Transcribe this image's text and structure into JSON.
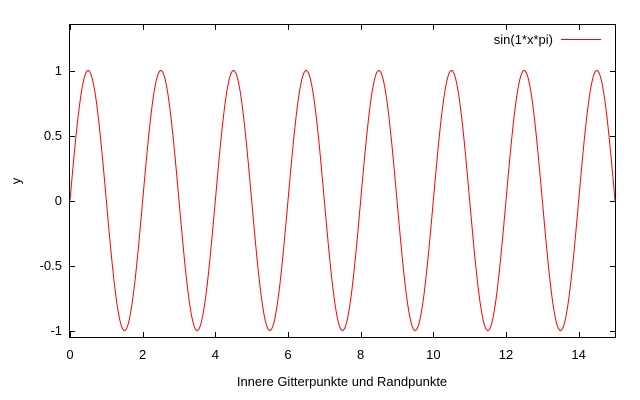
{
  "chart_data": {
    "type": "line",
    "title": "",
    "xlabel": "Innere Gitterpunkte und Randpunkte",
    "ylabel": "y",
    "xlim": [
      0,
      15
    ],
    "ylim": [
      -1.05,
      1.35
    ],
    "xticks": [
      0,
      2,
      4,
      6,
      8,
      10,
      12,
      14
    ],
    "xtick_labels": [
      "0",
      "2",
      "4",
      "6",
      "8",
      "10",
      "12",
      "14"
    ],
    "yticks": [
      -1,
      -0.5,
      0,
      0.5,
      1
    ],
    "ytick_labels": [
      "-1",
      "-0.5",
      "0",
      "0.5",
      "1"
    ],
    "grid": false,
    "legend_position": "top-right",
    "series": [
      {
        "name": "sin(1*x*pi)",
        "function": "sin(1*x*pi)",
        "color": "#ff0000",
        "x": [
          0,
          0.25,
          0.5,
          0.75,
          1,
          1.25,
          1.5,
          1.75,
          2,
          2.25,
          2.5,
          2.75,
          3,
          3.25,
          3.5,
          3.75,
          4,
          4.25,
          4.5,
          4.75,
          5,
          5.25,
          5.5,
          5.75,
          6,
          6.25,
          6.5,
          6.75,
          7,
          7.25,
          7.5,
          7.75,
          8,
          8.25,
          8.5,
          8.75,
          9,
          9.25,
          9.5,
          9.75,
          10,
          10.25,
          10.5,
          10.75,
          11,
          11.25,
          11.5,
          11.75,
          12,
          12.25,
          12.5,
          12.75,
          13,
          13.25,
          13.5,
          13.75,
          14,
          14.25,
          14.5,
          14.75,
          15
        ],
        "y": [
          0,
          0.71,
          1,
          0.71,
          0,
          -0.71,
          -1,
          -0.71,
          0,
          0.71,
          1,
          0.71,
          0,
          -0.71,
          -1,
          -0.71,
          0,
          0.71,
          1,
          0.71,
          0,
          -0.71,
          -1,
          -0.71,
          0,
          0.71,
          1,
          0.71,
          0,
          -0.71,
          -1,
          -0.71,
          0,
          0.71,
          1,
          0.71,
          0,
          -0.71,
          -1,
          -0.71,
          0,
          0.71,
          1,
          0.71,
          0,
          -0.71,
          -1,
          -0.71,
          0,
          0.71,
          1,
          0.71,
          0,
          -0.71,
          -1,
          -0.71,
          0,
          0.71,
          1,
          0.71,
          0
        ]
      }
    ]
  }
}
